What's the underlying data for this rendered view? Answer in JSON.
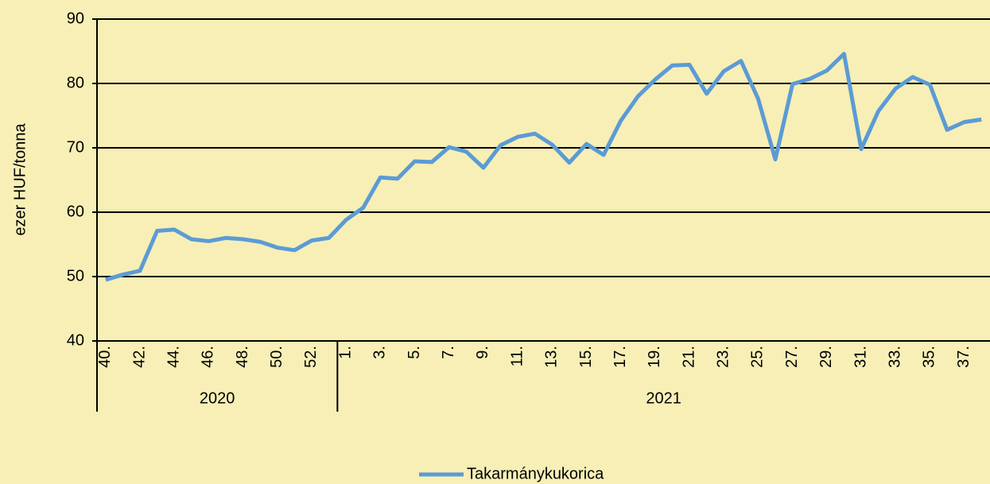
{
  "chart_data": {
    "type": "line",
    "ylabel": "ezer HUF/tonna",
    "categories": [
      "40.",
      null,
      "42.",
      null,
      "44.",
      null,
      "46.",
      null,
      "48.",
      null,
      "50.",
      null,
      "52.",
      null,
      "1.",
      null,
      "3.",
      null,
      "5.",
      null,
      "7.",
      null,
      "9.",
      null,
      "11.",
      null,
      "13.",
      null,
      "15.",
      null,
      "17.",
      null,
      "19.",
      null,
      "21.",
      null,
      "23.",
      null,
      "25.",
      null,
      "27.",
      null,
      "29.",
      null,
      "31.",
      null,
      "33.",
      null,
      "35.",
      null,
      "37.",
      null
    ],
    "group_labels": [
      "2020",
      "2021"
    ],
    "group_sizes": [
      14,
      38
    ],
    "series": [
      {
        "name": "Takarmánykukorica",
        "color": "#5b9bd5",
        "values": [
          49.5,
          50.3,
          50.9,
          57.1,
          57.3,
          55.8,
          55.5,
          56.0,
          55.8,
          55.4,
          54.5,
          54.1,
          55.6,
          56.0,
          58.8,
          60.7,
          65.4,
          65.2,
          67.9,
          67.8,
          70.1,
          69.4,
          66.9,
          70.4,
          71.7,
          72.2,
          70.5,
          67.7,
          70.6,
          68.9,
          74.2,
          78.0,
          80.6,
          82.8,
          82.9,
          78.4,
          81.9,
          83.5,
          77.6,
          68.2,
          79.9,
          80.7,
          82.0,
          84.6,
          69.8,
          75.7,
          79.2,
          81.0,
          79.8,
          72.8,
          74.0,
          74.4
        ]
      }
    ],
    "ylim": [
      40,
      90
    ],
    "yticks": [
      40,
      50,
      60,
      70,
      80,
      90
    ],
    "grid": true,
    "legend": "bottom"
  }
}
